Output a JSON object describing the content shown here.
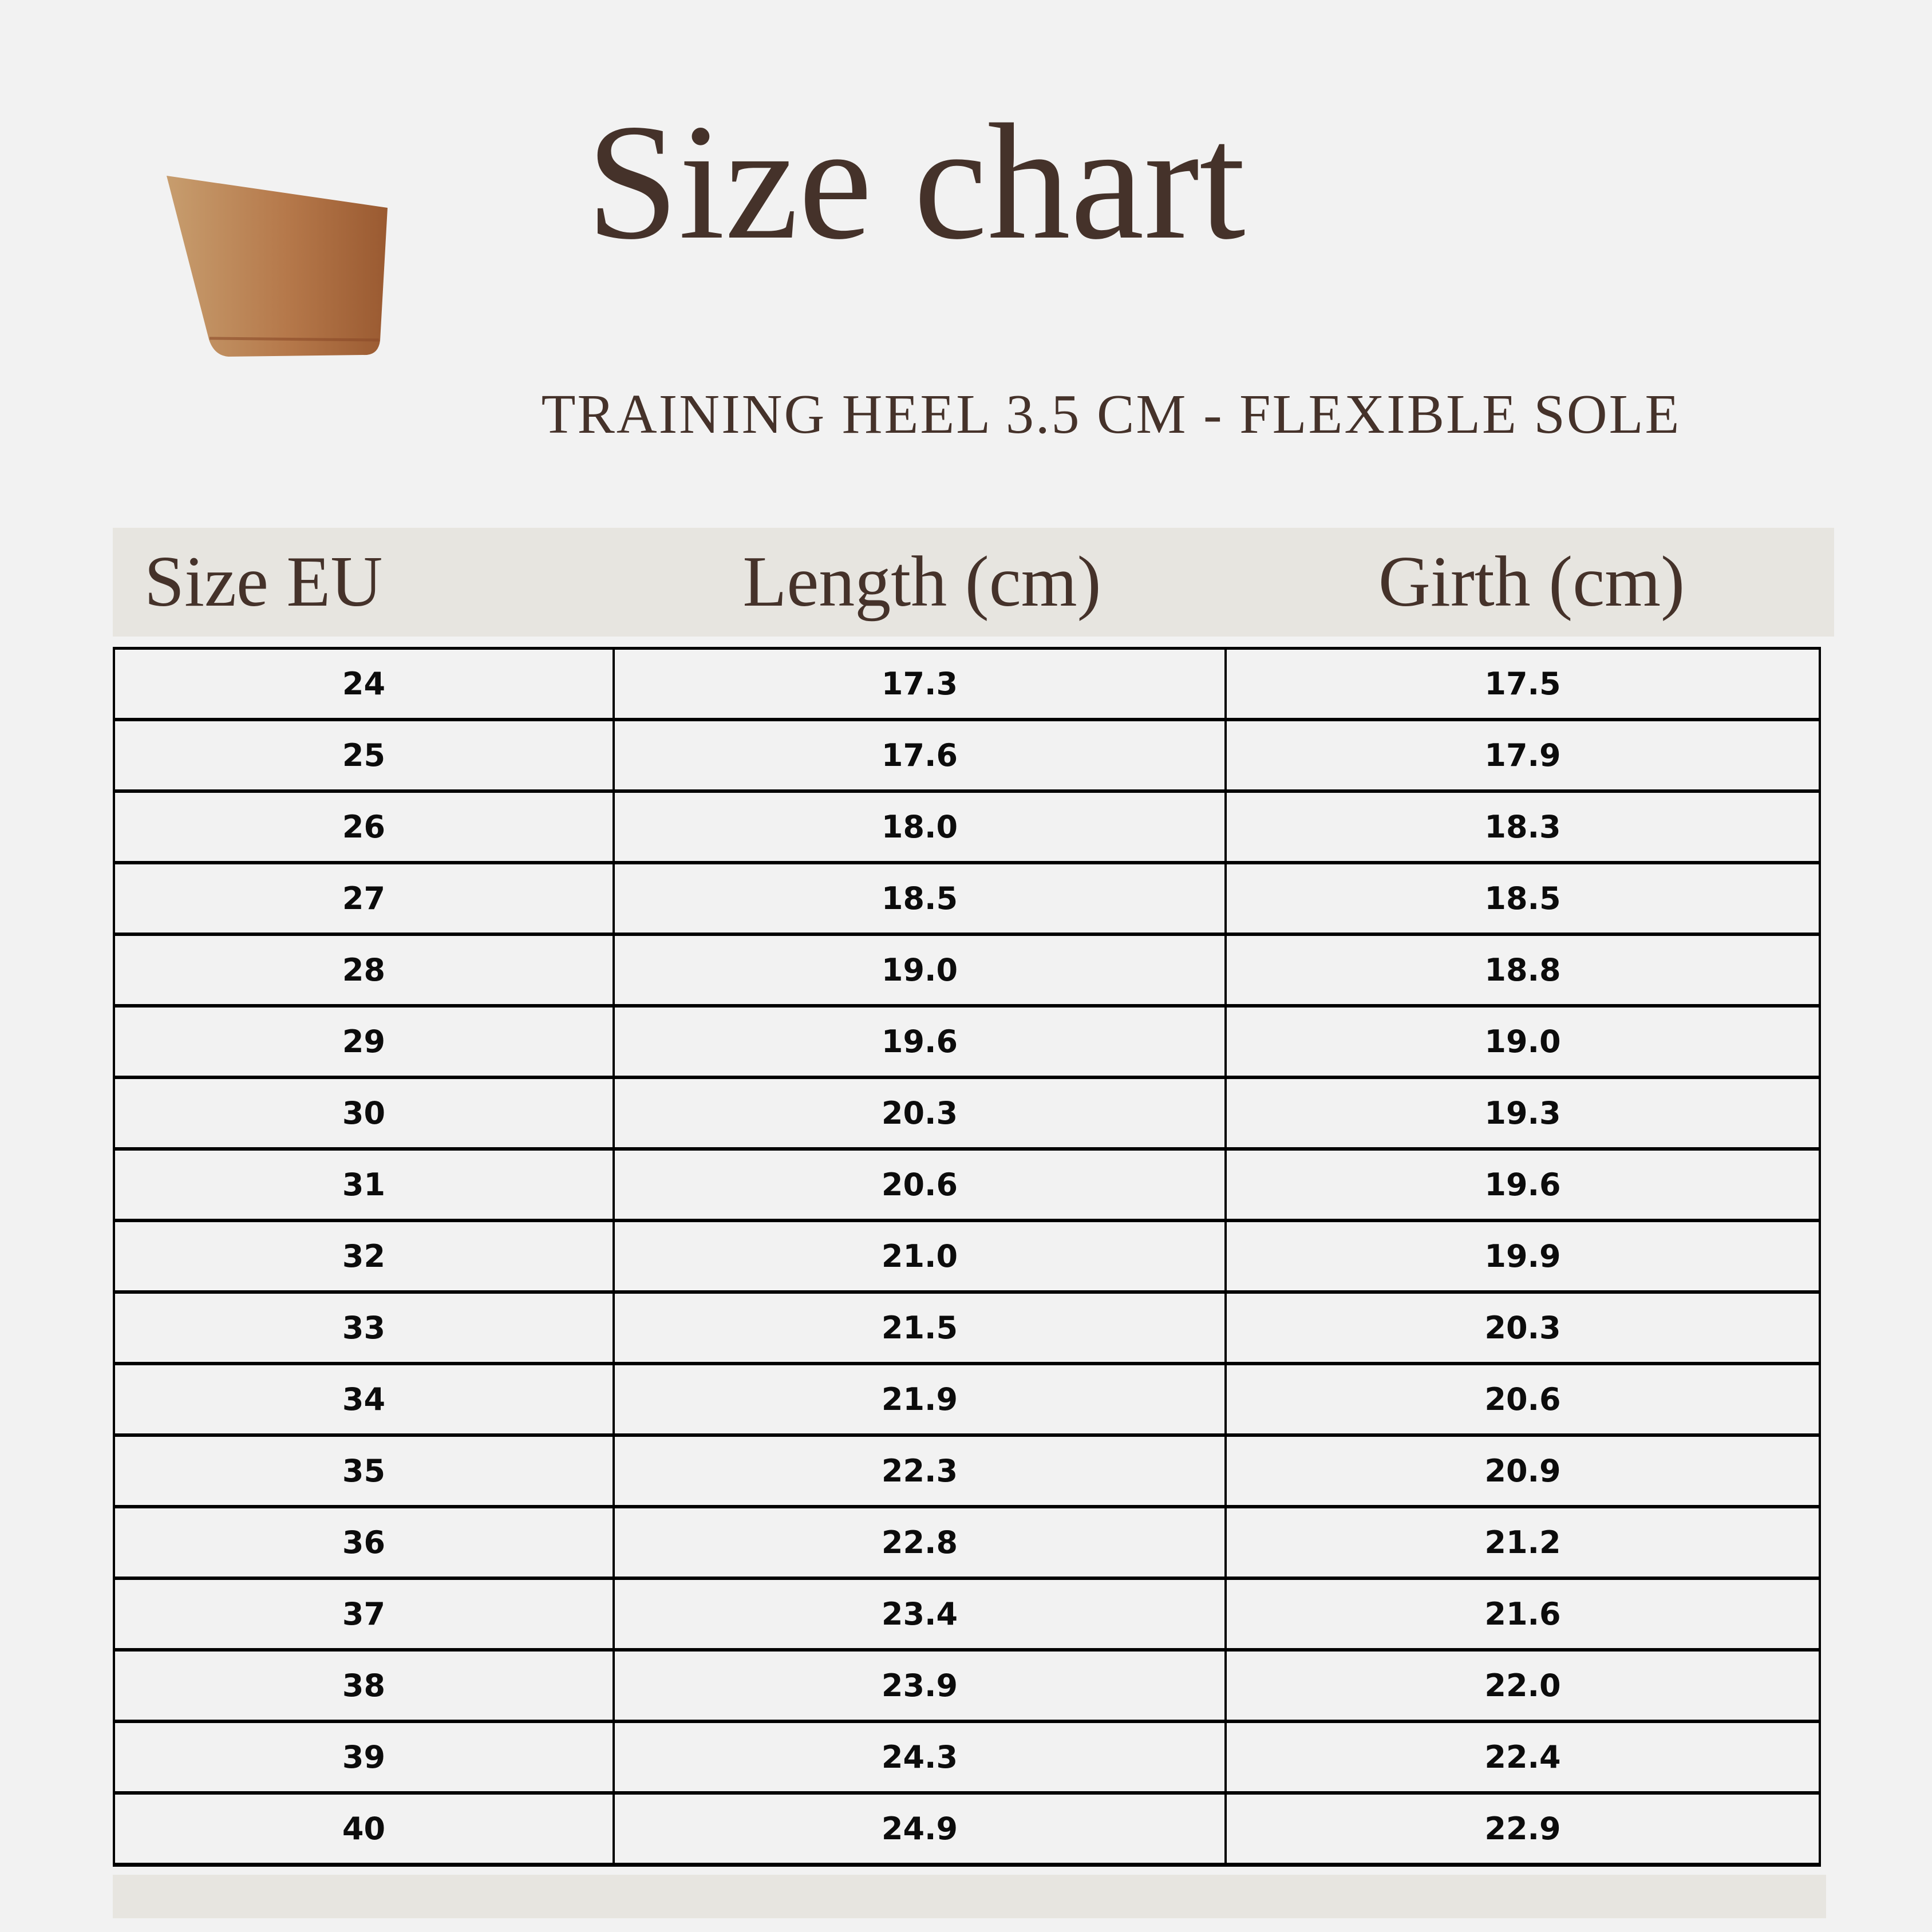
{
  "header": {
    "title": "Size chart",
    "subtitle": "TRAINING HEEL 3.5 CM - FLEXIBLE SOLE"
  },
  "icon": {
    "name": "heel-icon",
    "description": "side view of a tan/brown training shoe heel with bottom top-lift band"
  },
  "table": {
    "columns": [
      "Size EU",
      "Length (cm)",
      "Girth (cm)"
    ],
    "rows": [
      [
        "24",
        "17.3",
        "17.5"
      ],
      [
        "25",
        "17.6",
        "17.9"
      ],
      [
        "26",
        "18.0",
        "18.3"
      ],
      [
        "27",
        "18.5",
        "18.5"
      ],
      [
        "28",
        "19.0",
        "18.8"
      ],
      [
        "29",
        "19.6",
        "19.0"
      ],
      [
        "30",
        "20.3",
        "19.3"
      ],
      [
        "31",
        "20.6",
        "19.6"
      ],
      [
        "32",
        "21.0",
        "19.9"
      ],
      [
        "33",
        "21.5",
        "20.3"
      ],
      [
        "34",
        "21.9",
        "20.6"
      ],
      [
        "35",
        "22.3",
        "20.9"
      ],
      [
        "36",
        "22.8",
        "21.2"
      ],
      [
        "37",
        "23.4",
        "21.6"
      ],
      [
        "38",
        "23.9",
        "22.0"
      ],
      [
        "39",
        "24.3",
        "22.4"
      ],
      [
        "40",
        "24.9",
        "22.9"
      ]
    ]
  },
  "chart_data": {
    "type": "table",
    "title": "Size chart",
    "subtitle": "TRAINING HEEL 3.5 CM - FLEXIBLE SOLE",
    "columns": [
      "Size EU",
      "Length (cm)",
      "Girth (cm)"
    ],
    "size_eu": [
      24,
      25,
      26,
      27,
      28,
      29,
      30,
      31,
      32,
      33,
      34,
      35,
      36,
      37,
      38,
      39,
      40
    ],
    "length_cm": [
      17.3,
      17.6,
      18.0,
      18.5,
      19.0,
      19.6,
      20.3,
      20.6,
      21.0,
      21.5,
      21.9,
      22.3,
      22.8,
      23.4,
      23.9,
      24.3,
      24.9
    ],
    "girth_cm": [
      17.5,
      17.9,
      18.3,
      18.5,
      18.8,
      19.0,
      19.3,
      19.6,
      19.9,
      20.3,
      20.6,
      20.9,
      21.2,
      21.6,
      22.0,
      22.4,
      22.9
    ]
  },
  "colors": {
    "bg": "#f2f2f2",
    "band": "#e7e5e0",
    "brown": "#45322a",
    "line": "#000000",
    "numcolor": "#0c0c0c",
    "heel_light": "#c79d6e",
    "heel_mid": "#b5784a",
    "heel_dark": "#9a5a31"
  }
}
